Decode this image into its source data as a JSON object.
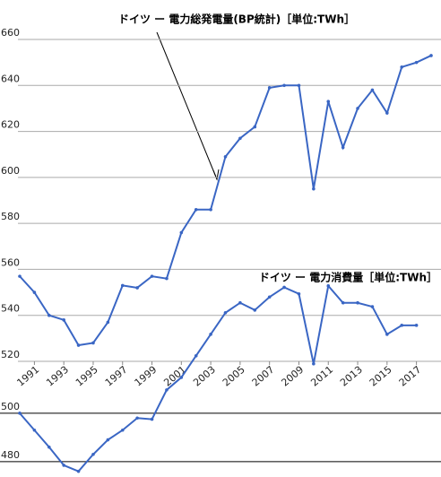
{
  "chart_data": [
    {
      "type": "line",
      "title": "ドイツ ー 電力総発電量(BP統計)［単位:TWh］",
      "x": [
        1990,
        1991,
        1992,
        1993,
        1994,
        1995,
        1996,
        1997,
        1998,
        1999,
        2000,
        2001,
        2002,
        2003,
        2004,
        2005,
        2006,
        2007,
        2008,
        2009,
        2010,
        2011,
        2012,
        2013,
        2014,
        2015,
        2016,
        2017,
        2018
      ],
      "series": [
        {
          "name": "総発電量",
          "color": "#3a66c4",
          "values": [
            557,
            550,
            540,
            538,
            527,
            528,
            537,
            553,
            552,
            557,
            556,
            576,
            586,
            586,
            609,
            617,
            622,
            639,
            640,
            640,
            595,
            633,
            613,
            630,
            638,
            628,
            648,
            650,
            653
          ]
        }
      ],
      "xlim": [
        1990,
        2018
      ],
      "xticks": [
        1991,
        1993,
        1995,
        1997,
        1999,
        2001,
        2003,
        2005,
        2007,
        2009,
        2011,
        2013,
        2015,
        2017
      ],
      "ylim": [
        520,
        660
      ],
      "yticks": [
        520,
        540,
        560,
        580,
        600,
        620,
        640,
        660
      ],
      "grid": true
    },
    {
      "type": "line",
      "title": "ドイツ ー 電力消費量［単位:TWh］",
      "x": [
        1990,
        1991,
        1992,
        1993,
        1994,
        1995,
        1996,
        1997,
        1998,
        1999,
        2000,
        2001,
        2002,
        2003,
        2004,
        2005,
        2006,
        2007,
        2008,
        2009,
        2010,
        2011,
        2012,
        2013,
        2014,
        2015,
        2016,
        2017
      ],
      "series": [
        {
          "name": "消費量",
          "color": "#3a66c4",
          "values": [
            500,
            493,
            486,
            478.5,
            476,
            483,
            489,
            493,
            498,
            497.5,
            509.6,
            514.8,
            523.7,
            532.6,
            541.5,
            545.6,
            542.6,
            548,
            552,
            549.3,
            520.4,
            552.6,
            545.6,
            545.6,
            544,
            532.6,
            536.3,
            536.3
          ]
        }
      ],
      "xlim": [
        1990,
        2018
      ],
      "ylim": [
        475.5,
        563
      ],
      "yticks": [
        480,
        500
      ],
      "grid": true
    }
  ]
}
